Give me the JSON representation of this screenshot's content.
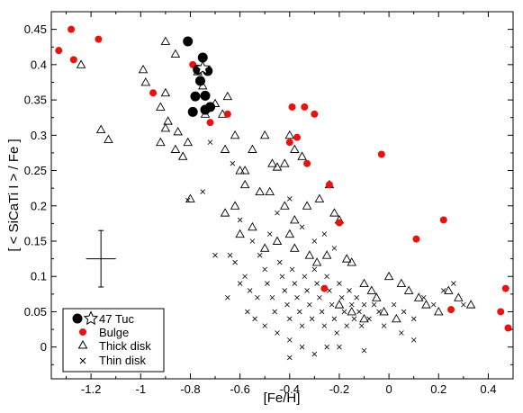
{
  "chart_data": {
    "type": "scatter",
    "title": "",
    "xlabel": "[Fe/H]",
    "ylabel": "[ < SiCaTi I > / Fe ]",
    "xlim": [
      -1.36,
      0.5
    ],
    "ylim": [
      -0.045,
      0.475
    ],
    "xticks": [
      -1.2,
      -1,
      -0.8,
      -0.6,
      -0.4,
      -0.2,
      0,
      0.2,
      0.4
    ],
    "xtick_labels": [
      "-1.2",
      "-1",
      "-0.8",
      "-0.6",
      "-0.4",
      "-0.2",
      "0",
      "0.2",
      "0.4"
    ],
    "yticks": [
      0,
      0.05,
      0.1,
      0.15,
      0.2,
      0.25,
      0.3,
      0.35,
      0.4,
      0.45
    ],
    "ytick_labels": [
      "0",
      "0.05",
      "0.1",
      "0.15",
      "0.2",
      "0.25",
      "0.3",
      "0.35",
      "0.4",
      "0.45"
    ],
    "legend_position": "bottom-left",
    "error_bar": {
      "x": -1.16,
      "y": 0.125,
      "xerr": 0.06,
      "yerr": 0.04
    },
    "series": [
      {
        "name": "47 Tuc",
        "marker": "filled-circle",
        "color": "#000000",
        "points": [
          [
            -0.81,
            0.433
          ],
          [
            -0.75,
            0.41
          ],
          [
            -0.77,
            0.393
          ],
          [
            -0.73,
            0.391
          ],
          [
            -0.76,
            0.377
          ],
          [
            -0.74,
            0.356
          ],
          [
            -0.78,
            0.355
          ],
          [
            -0.72,
            0.34
          ],
          [
            -0.74,
            0.336
          ],
          [
            -0.79,
            0.333
          ]
        ]
      },
      {
        "name": "47 Tuc",
        "marker": "open-star",
        "color": "#000000",
        "points": [
          [
            -0.75,
            0.395
          ]
        ]
      },
      {
        "name": "Bulge",
        "marker": "filled-circle",
        "color": "#e8120e",
        "points": [
          [
            -1.33,
            0.42
          ],
          [
            -1.28,
            0.45
          ],
          [
            -1.27,
            0.407
          ],
          [
            -1.17,
            0.436
          ],
          [
            -0.95,
            0.36
          ],
          [
            -0.79,
            0.4
          ],
          [
            -0.65,
            0.33
          ],
          [
            -0.72,
            0.318
          ],
          [
            -0.4,
            0.29
          ],
          [
            -0.39,
            0.34
          ],
          [
            -0.34,
            0.34
          ],
          [
            -0.3,
            0.33
          ],
          [
            -0.37,
            0.297
          ],
          [
            -0.33,
            0.26
          ],
          [
            -0.24,
            0.23
          ],
          [
            -0.2,
            0.176
          ],
          [
            -0.03,
            0.273
          ],
          [
            0.22,
            0.18
          ],
          [
            0.11,
            0.153
          ],
          [
            -0.26,
            0.083
          ],
          [
            0.25,
            0.053
          ],
          [
            0.47,
            0.083
          ],
          [
            0.45,
            0.05
          ],
          [
            0.48,
            0.027
          ]
        ]
      },
      {
        "name": "Thick disk",
        "marker": "open-triangle",
        "color": "#000000",
        "points": [
          [
            -1.24,
            0.4
          ],
          [
            -0.99,
            0.393
          ],
          [
            -0.98,
            0.375
          ],
          [
            -0.9,
            0.433
          ],
          [
            -0.86,
            0.415
          ],
          [
            -0.9,
            0.36
          ],
          [
            -0.92,
            0.34
          ],
          [
            -0.89,
            0.32
          ],
          [
            -0.9,
            0.31
          ],
          [
            -0.85,
            0.305
          ],
          [
            -0.92,
            0.29
          ],
          [
            -0.86,
            0.28
          ],
          [
            -0.83,
            0.27
          ],
          [
            -0.81,
            0.29
          ],
          [
            -0.77,
            0.39
          ],
          [
            -0.75,
            0.37
          ],
          [
            -0.74,
            0.33
          ],
          [
            -0.7,
            0.345
          ],
          [
            -0.65,
            0.355
          ],
          [
            -0.67,
            0.33
          ],
          [
            -0.62,
            0.3
          ],
          [
            -1.16,
            0.308
          ],
          [
            -1.13,
            0.294
          ],
          [
            -0.8,
            0.21
          ],
          [
            -0.66,
            0.28
          ],
          [
            -0.6,
            0.25
          ],
          [
            -0.58,
            0.25
          ],
          [
            -0.55,
            0.28
          ],
          [
            -0.5,
            0.3
          ],
          [
            -0.47,
            0.26
          ],
          [
            -0.45,
            0.255
          ],
          [
            -0.42,
            0.26
          ],
          [
            -0.4,
            0.3
          ],
          [
            -0.38,
            0.28
          ],
          [
            -0.35,
            0.27
          ],
          [
            -0.52,
            0.22
          ],
          [
            -0.48,
            0.22
          ],
          [
            -0.42,
            0.2
          ],
          [
            -0.38,
            0.18
          ],
          [
            -0.33,
            0.2
          ],
          [
            -0.28,
            0.21
          ],
          [
            -0.24,
            0.23
          ],
          [
            -0.22,
            0.19
          ],
          [
            -0.2,
            0.18
          ],
          [
            -0.58,
            0.23
          ],
          [
            -0.62,
            0.2
          ],
          [
            -0.66,
            0.19
          ],
          [
            -0.6,
            0.16
          ],
          [
            -0.55,
            0.17
          ],
          [
            -0.5,
            0.14
          ],
          [
            -0.45,
            0.15
          ],
          [
            -0.4,
            0.16
          ],
          [
            -0.38,
            0.14
          ],
          [
            -0.32,
            0.13
          ],
          [
            -0.29,
            0.12
          ],
          [
            -0.25,
            0.13
          ],
          [
            -0.17,
            0.125
          ],
          [
            -0.15,
            0.12
          ],
          [
            -0.1,
            0.09
          ],
          [
            -0.05,
            0.07
          ],
          [
            0.0,
            0.1
          ],
          [
            0.05,
            0.09
          ],
          [
            0.08,
            0.08
          ],
          [
            0.12,
            0.07
          ],
          [
            0.15,
            0.06
          ],
          [
            0.2,
            0.05
          ],
          [
            0.24,
            0.08
          ],
          [
            0.28,
            0.07
          ],
          [
            0.33,
            0.06
          ],
          [
            -0.2,
            0.06
          ],
          [
            -0.15,
            0.05
          ],
          [
            -0.1,
            0.04
          ],
          [
            -0.07,
            0.08
          ],
          [
            -0.02,
            0.05
          ],
          [
            0.03,
            0.04
          ]
        ]
      },
      {
        "name": "Thin disk",
        "marker": "cross",
        "color": "#000000",
        "points": [
          [
            -0.81,
            0.208
          ],
          [
            -0.75,
            0.22
          ],
          [
            -0.72,
            0.29
          ],
          [
            -0.63,
            0.26
          ],
          [
            -0.6,
            0.18
          ],
          [
            -0.64,
            0.13
          ],
          [
            -0.7,
            0.13
          ],
          [
            -0.62,
            0.12
          ],
          [
            -0.55,
            0.15
          ],
          [
            -0.52,
            0.13
          ],
          [
            -0.58,
            0.1
          ],
          [
            -0.56,
            0.08
          ],
          [
            -0.53,
            0.07
          ],
          [
            -0.5,
            0.11
          ],
          [
            -0.49,
            0.09
          ],
          [
            -0.47,
            0.07
          ],
          [
            -0.46,
            0.05
          ],
          [
            -0.44,
            0.12
          ],
          [
            -0.43,
            0.1
          ],
          [
            -0.42,
            0.08
          ],
          [
            -0.41,
            0.06
          ],
          [
            -0.4,
            0.04
          ],
          [
            -0.39,
            0.11
          ],
          [
            -0.38,
            0.09
          ],
          [
            -0.37,
            0.07
          ],
          [
            -0.36,
            0.05
          ],
          [
            -0.35,
            0.03
          ],
          [
            -0.34,
            0.1
          ],
          [
            -0.33,
            0.08
          ],
          [
            -0.32,
            0.06
          ],
          [
            -0.31,
            0.04
          ],
          [
            -0.3,
            0.11
          ],
          [
            -0.29,
            0.09
          ],
          [
            -0.28,
            0.07
          ],
          [
            -0.27,
            0.05
          ],
          [
            -0.26,
            0.03
          ],
          [
            -0.25,
            0.1
          ],
          [
            -0.24,
            0.08
          ],
          [
            -0.23,
            0.06
          ],
          [
            -0.22,
            0.04
          ],
          [
            -0.21,
            0.02
          ],
          [
            -0.2,
            0.09
          ],
          [
            -0.19,
            0.07
          ],
          [
            -0.18,
            0.05
          ],
          [
            -0.17,
            0.03
          ],
          [
            -0.16,
            0.08
          ],
          [
            -0.15,
            0.06
          ],
          [
            -0.14,
            0.04
          ],
          [
            -0.13,
            0.07
          ],
          [
            -0.12,
            0.05
          ],
          [
            -0.11,
            0.03
          ],
          [
            -0.1,
            0.06
          ],
          [
            -0.08,
            0.04
          ],
          [
            -0.06,
            0.06
          ],
          [
            -0.04,
            0.05
          ],
          [
            -0.02,
            0.03
          ],
          [
            0.02,
            0.06
          ],
          [
            0.06,
            0.05
          ],
          [
            0.1,
            0.04
          ],
          [
            0.14,
            0.07
          ],
          [
            0.18,
            0.06
          ],
          [
            0.22,
            0.08
          ],
          [
            0.26,
            0.09
          ],
          [
            0.3,
            0.06
          ],
          [
            -0.48,
            0.16
          ],
          [
            -0.45,
            0.19
          ],
          [
            -0.4,
            0.21
          ],
          [
            -0.35,
            0.17
          ],
          [
            -0.3,
            0.15
          ],
          [
            -0.26,
            0.16
          ],
          [
            -0.22,
            0.14
          ],
          [
            -0.5,
            0.03
          ],
          [
            -0.45,
            0.02
          ],
          [
            -0.4,
            0.01
          ],
          [
            -0.35,
            0.0
          ],
          [
            -0.3,
            -0.01
          ],
          [
            -0.25,
            0.0
          ],
          [
            -0.4,
            -0.015
          ],
          [
            -0.2,
            0.0
          ],
          [
            -0.1,
            -0.005
          ],
          [
            0.05,
            0.02
          ],
          [
            0.1,
            0.01
          ],
          [
            -0.57,
            0.05
          ],
          [
            -0.54,
            0.04
          ],
          [
            -0.6,
            0.09
          ],
          [
            -0.65,
            0.07
          ]
        ]
      }
    ]
  },
  "legend": {
    "items": [
      {
        "label": "47 Tuc",
        "marker": "filled-circle+open-star"
      },
      {
        "label": "Bulge",
        "marker": "filled-circle-red"
      },
      {
        "label": "Thick disk",
        "marker": "open-triangle"
      },
      {
        "label": "Thin disk",
        "marker": "cross"
      }
    ]
  }
}
